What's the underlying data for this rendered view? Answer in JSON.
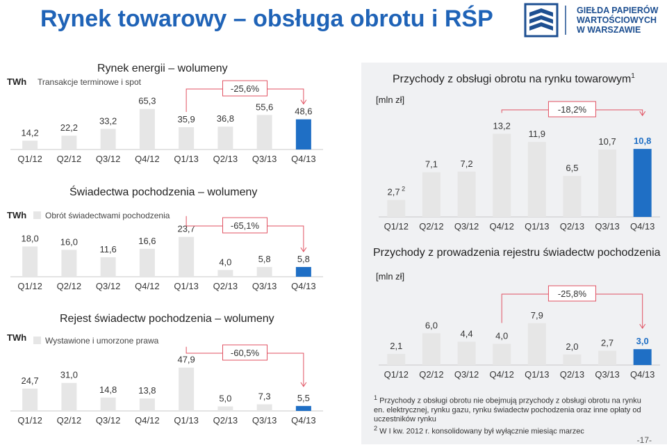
{
  "header": {
    "title": "Rynek towarowy – obsługa obrotu i RŚP",
    "logo_lines": [
      "GIEŁDA PAPIERÓW",
      "WARTOŚCIOWYCH",
      "W WARSZAWIE"
    ],
    "brand_color": "#1f63b7"
  },
  "chart_data": [
    {
      "id": "energy",
      "type": "bar",
      "title": "Rynek energii – wolumeny",
      "unit": "TWh",
      "legend": "Transakcje terminowe i spot",
      "categories": [
        "Q1/12",
        "Q2/12",
        "Q3/12",
        "Q4/12",
        "Q1/13",
        "Q2/13",
        "Q3/13",
        "Q4/13"
      ],
      "values": [
        14.2,
        22.2,
        33.2,
        65.3,
        35.9,
        36.8,
        55.6,
        48.6
      ],
      "labels": [
        "14,2",
        "22,2",
        "33,2",
        "65,3",
        "35,9",
        "36,8",
        "55,6",
        "48,6"
      ],
      "change": "-25,6%",
      "ylim": [
        0,
        140
      ],
      "highlight_index": 7
    },
    {
      "id": "certificates",
      "type": "bar",
      "title": "Świadectwa pochodzenia – wolumeny",
      "unit": "TWh",
      "legend": "Obrót świadectwami pochodzenia",
      "categories": [
        "Q1/12",
        "Q2/12",
        "Q3/12",
        "Q4/12",
        "Q1/13",
        "Q2/13",
        "Q3/13",
        "Q4/13"
      ],
      "values": [
        18.0,
        16.0,
        11.6,
        16.6,
        23.7,
        4.0,
        5.8,
        5.8
      ],
      "labels": [
        "18,0",
        "16,0",
        "11,6",
        "16,6",
        "23,7",
        "4,0",
        "5,8",
        "5,8"
      ],
      "change": "-65,1%",
      "ylim": [
        0,
        55
      ],
      "highlight_index": 7
    },
    {
      "id": "registry",
      "type": "bar",
      "title": "Rejest świadectw pochodzenia – wolumeny",
      "unit": "TWh",
      "legend": "Wystawione i umorzone prawa",
      "categories": [
        "Q1/12",
        "Q2/12",
        "Q3/12",
        "Q4/12",
        "Q1/13",
        "Q2/13",
        "Q3/13",
        "Q4/13"
      ],
      "values": [
        24.7,
        31.0,
        14.8,
        13.8,
        47.9,
        5.0,
        7.3,
        5.5
      ],
      "labels": [
        "24,7",
        "31,0",
        "14,8",
        "13,8",
        "47,9",
        "5,0",
        "7,3",
        "5,5"
      ],
      "change": "-60,5%",
      "ylim": [
        0,
        110
      ],
      "highlight_index": 7
    },
    {
      "id": "trading_revenue",
      "type": "bar",
      "title": "Przychody z obsługi obrotu na rynku towarowym",
      "title_superscript": "1",
      "unit": "[mln zł]",
      "categories": [
        "Q1/12",
        "Q2/12",
        "Q3/12",
        "Q4/12",
        "Q1/13",
        "Q2/13",
        "Q3/13",
        "Q4/13"
      ],
      "values": [
        2.7,
        7.1,
        7.2,
        13.2,
        11.9,
        6.5,
        10.7,
        10.8
      ],
      "labels": [
        "2,7",
        "7,1",
        "7,2",
        "13,2",
        "11,9",
        "6,5",
        "10,7",
        "10,8"
      ],
      "first_label_superscript": "2",
      "change": "-18,2%",
      "ylim": [
        0,
        17
      ],
      "highlight_index": 7
    },
    {
      "id": "registry_revenue",
      "type": "bar",
      "title": "Przychody z prowadzenia rejestru świadectw pochodzenia",
      "unit": "[mln zł]",
      "categories": [
        "Q1/12",
        "Q2/12",
        "Q3/12",
        "Q4/12",
        "Q1/13",
        "Q2/13",
        "Q3/13",
        "Q4/13"
      ],
      "values": [
        2.1,
        6.0,
        4.4,
        4.0,
        7.9,
        2.0,
        2.7,
        3.0
      ],
      "labels": [
        "2,1",
        "6,0",
        "4,4",
        "4,0",
        "7,9",
        "2,0",
        "2,7",
        "3,0"
      ],
      "change": "-25,8%",
      "ylim": [
        0,
        10.5
      ],
      "highlight_index": 7
    }
  ],
  "footnote": {
    "note1_marker": "1",
    "note1": "Przychody z obsługi obrotu nie obejmują przychody z obsługi obrotu na rynku en. elektrycznej, rynku gazu, rynku świadectw pochodzenia oraz inne opłaty od uczestników rynku",
    "note2_marker": "2",
    "note2": "W I kw. 2012 r. konsolidowany był wyłącznie miesiąc marzec"
  },
  "page_number": "-17-",
  "colors": {
    "bar": "#e6e6e6",
    "highlight": "#1f6fc5",
    "axis": "#c8c8c8",
    "arrow": "#e05060",
    "text": "#333333"
  }
}
